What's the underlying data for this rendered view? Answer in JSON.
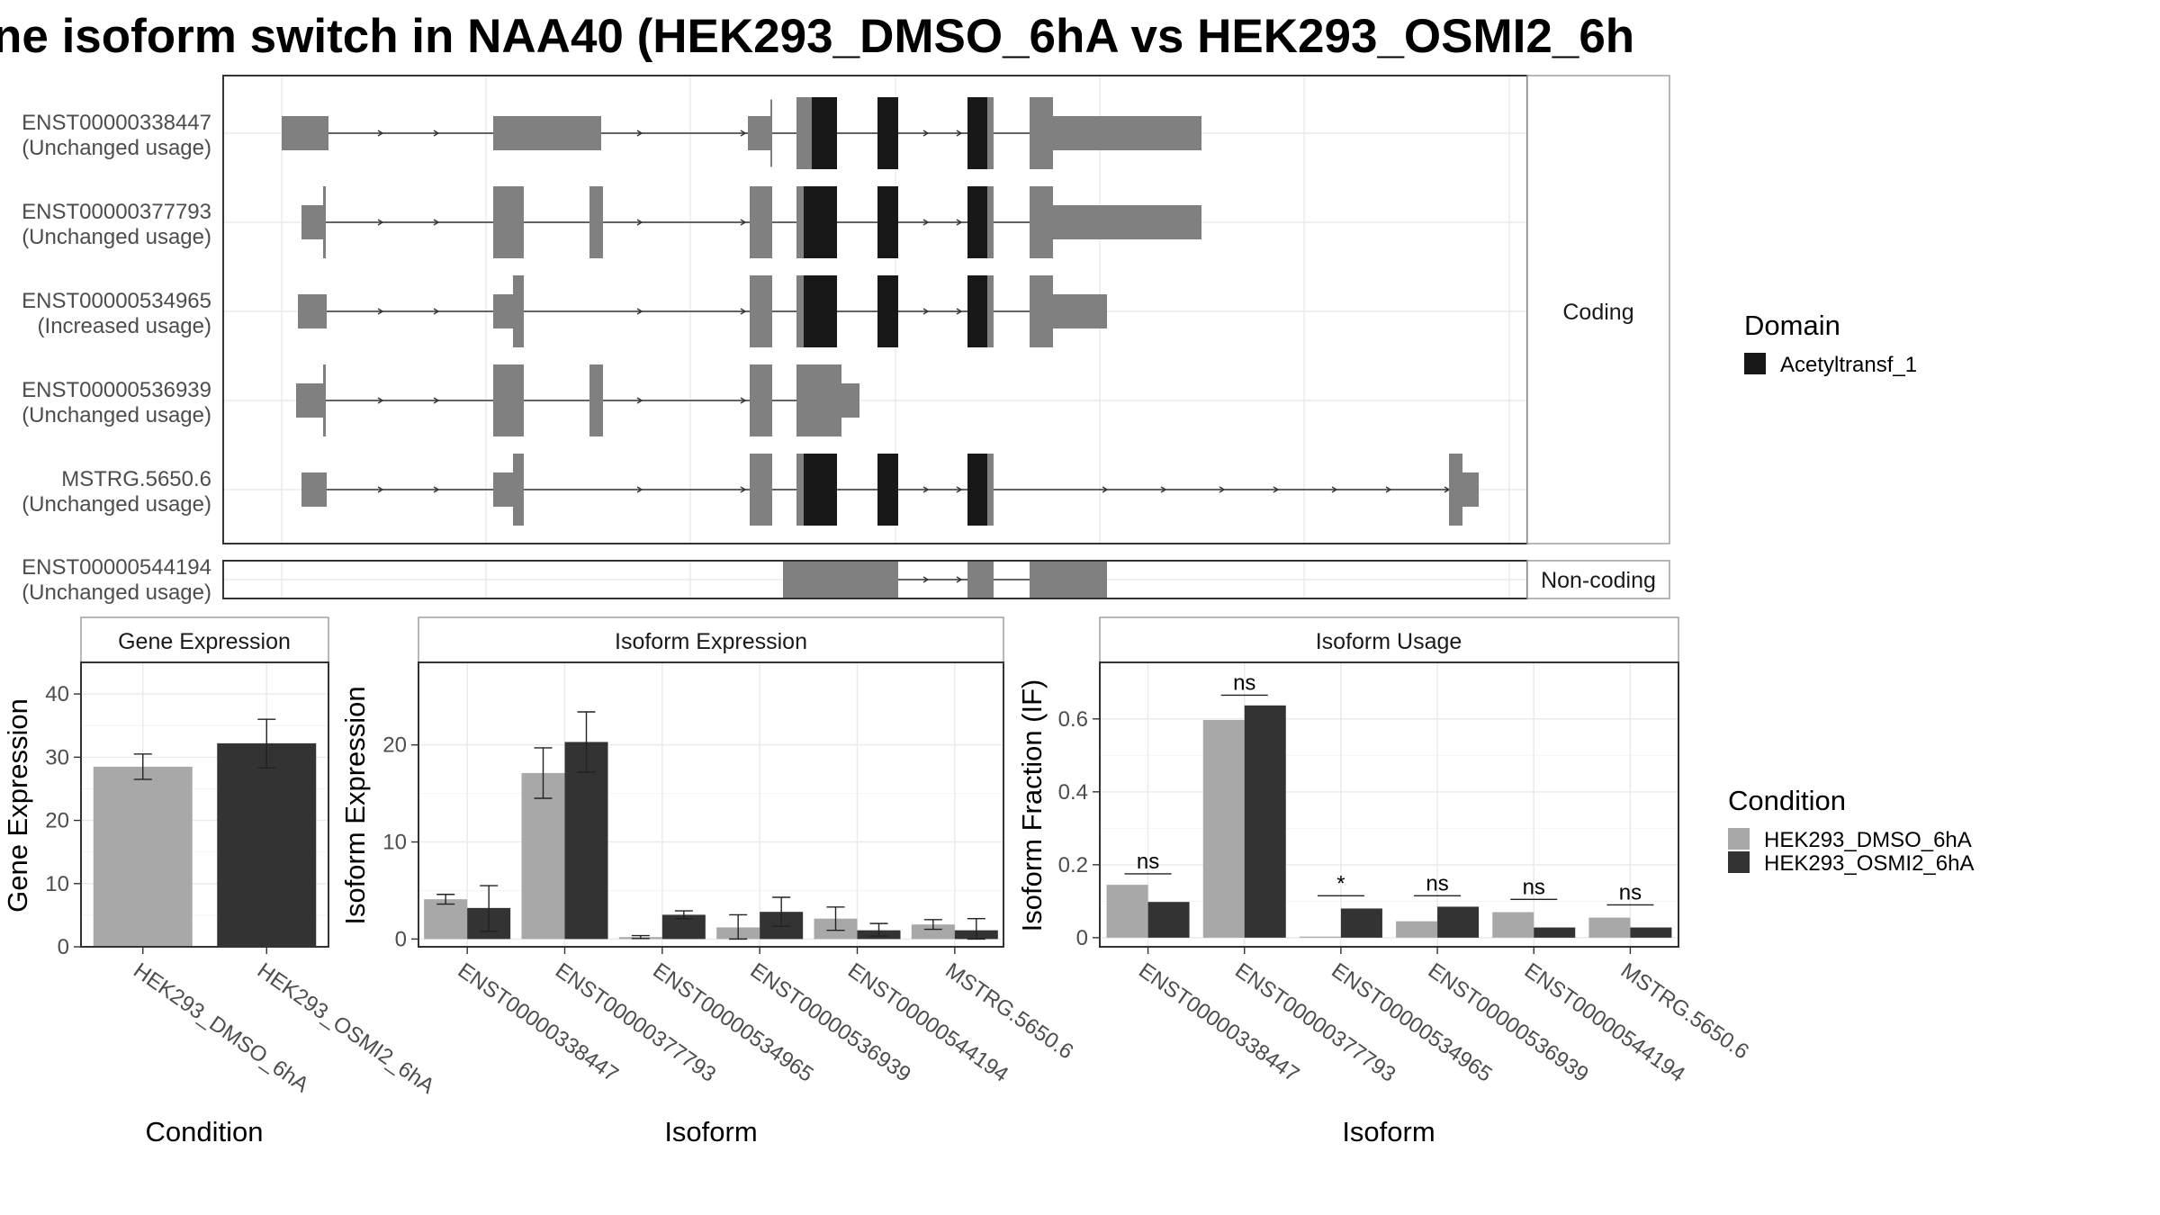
{
  "title": "ne isoform switch in NAA40 (HEK293_DMSO_6hA vs HEK293_OSMI2_6h",
  "colors": {
    "exon": "#808080",
    "domain": "#181818",
    "dmso": "#a8a8a8",
    "osmi": "#333333",
    "panel_border": "#4d4d4d",
    "strip_border": "#a0a0a0",
    "grid": "#ebebeb"
  },
  "transcript_panel": {
    "coding_label": "Coding",
    "noncoding_label": "Non-coding",
    "coding": [
      {
        "id": "ENST00000338447",
        "usage": "(Unchanged usage)"
      },
      {
        "id": "ENST00000377793",
        "usage": "(Unchanged usage)"
      },
      {
        "id": "ENST00000534965",
        "usage": "(Increased usage)"
      },
      {
        "id": "ENST00000536939",
        "usage": "(Unchanged usage)"
      },
      {
        "id": "MSTRG.5650.6",
        "usage": "(Unchanged usage)"
      }
    ],
    "noncoding": [
      {
        "id": "ENST00000544194",
        "usage": "(Unchanged usage)"
      }
    ]
  },
  "legends": {
    "domain": {
      "title": "Domain",
      "items": [
        "Acetyltransf_1"
      ]
    },
    "condition": {
      "title": "Condition",
      "items": [
        "HEK293_DMSO_6hA",
        "HEK293_OSMI2_6hA"
      ]
    }
  },
  "chart_data": [
    {
      "type": "bar",
      "title": "Gene Expression",
      "xlabel": "Condition",
      "ylabel": "Gene Expression",
      "ylim": [
        0,
        45
      ],
      "yticks": [
        0,
        10,
        20,
        30,
        40
      ],
      "grid": true,
      "categories": [
        "HEK293_DMSO_6hA",
        "HEK293_OSMI2_6hA"
      ],
      "values": [
        28.5,
        32.2
      ],
      "error_low": [
        26.5,
        28.3
      ],
      "error_high": [
        30.5,
        36.0
      ]
    },
    {
      "type": "bar",
      "title": "Isoform Expression",
      "xlabel": "Isoform",
      "ylabel": "Isoform Expression",
      "ylim": [
        -0.8,
        28.5
      ],
      "yticks": [
        0,
        10,
        20
      ],
      "grid": true,
      "categories": [
        "ENST00000338447",
        "ENST00000377793",
        "ENST00000534965",
        "ENST00000536939",
        "ENST00000544194",
        "MSTRG.5650.6"
      ],
      "series": [
        {
          "name": "HEK293_DMSO_6hA",
          "values": [
            4.1,
            17.1,
            0.2,
            1.2,
            2.1,
            1.5
          ],
          "error_low": [
            3.6,
            14.5,
            0.05,
            0.0,
            0.9,
            1.0
          ],
          "error_high": [
            4.6,
            19.7,
            0.35,
            2.5,
            3.3,
            2.0
          ]
        },
        {
          "name": "HEK293_OSMI2_6hA",
          "values": [
            3.2,
            20.3,
            2.5,
            2.8,
            0.9,
            0.9
          ],
          "error_low": [
            0.8,
            17.2,
            2.1,
            1.3,
            0.3,
            0.0
          ],
          "error_high": [
            5.5,
            23.4,
            2.9,
            4.3,
            1.6,
            2.1
          ]
        }
      ]
    },
    {
      "type": "bar",
      "title": "Isoform Usage",
      "xlabel": "Isoform",
      "ylabel": "Isoform Fraction (IF)",
      "ylim": [
        -0.025,
        0.755
      ],
      "yticks": [
        0.0,
        0.2,
        0.4,
        0.6
      ],
      "grid": true,
      "categories": [
        "ENST00000338447",
        "ENST00000377793",
        "ENST00000534965",
        "ENST00000536939",
        "ENST00000544194",
        "MSTRG.5650.6"
      ],
      "series": [
        {
          "name": "HEK293_DMSO_6hA",
          "values": [
            0.145,
            0.597,
            0.003,
            0.045,
            0.07,
            0.055
          ]
        },
        {
          "name": "HEK293_OSMI2_6hA",
          "values": [
            0.098,
            0.637,
            0.08,
            0.085,
            0.028,
            0.028
          ]
        }
      ],
      "significance": [
        "ns",
        "ns",
        "*",
        "ns",
        "ns",
        "ns"
      ],
      "sig_level": [
        0.175,
        0.665,
        0.115,
        0.115,
        0.105,
        0.09
      ]
    }
  ]
}
